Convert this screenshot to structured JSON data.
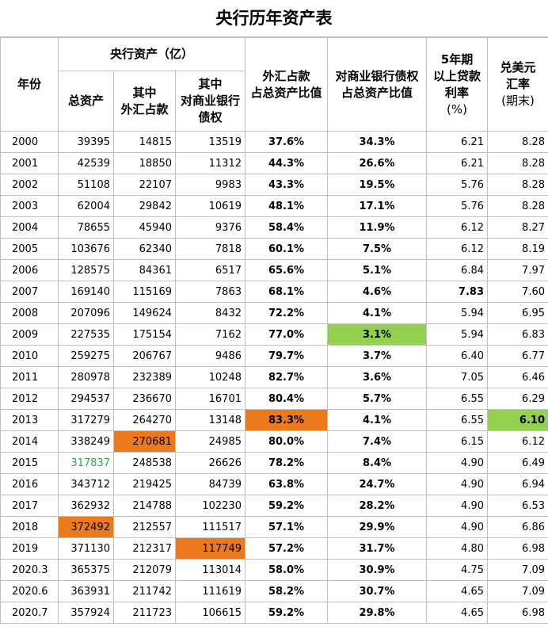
{
  "title": "央行历年资产表",
  "headers": {
    "year": "年份",
    "assets_group": "央行资产（亿）",
    "total": "总资产",
    "fx_l1": "其中",
    "fx_l2": "外汇占款",
    "bank_l1": "其中",
    "bank_l2": "对商业银行",
    "bank_l3": "债权",
    "fx_ratio_l1": "外汇占款",
    "fx_ratio_l2": "占总资产比值",
    "bank_ratio_l1": "对商业银行债权",
    "bank_ratio_l2": "占总资产比值",
    "rate_l1": "5年期",
    "rate_l2": "以上贷款",
    "rate_l3": "利率",
    "rate_l4": "(%)",
    "fx_rate_l1": "兑美元",
    "fx_rate_l2": "汇率",
    "fx_rate_l3": "(期末)"
  },
  "rows": [
    {
      "year": "2000",
      "total": "39395",
      "fx": "14815",
      "bank": "13519",
      "fx_ratio": "37.6%",
      "bank_ratio": "34.3%",
      "rate": "6.21",
      "usd": "8.28"
    },
    {
      "year": "2001",
      "total": "42539",
      "fx": "18850",
      "bank": "11312",
      "fx_ratio": "44.3%",
      "bank_ratio": "26.6%",
      "rate": "6.21",
      "usd": "8.28"
    },
    {
      "year": "2002",
      "total": "51108",
      "fx": "22107",
      "bank": "9983",
      "fx_ratio": "43.3%",
      "bank_ratio": "19.5%",
      "rate": "5.76",
      "usd": "8.28"
    },
    {
      "year": "2003",
      "total": "62004",
      "fx": "29842",
      "bank": "10619",
      "fx_ratio": "48.1%",
      "bank_ratio": "17.1%",
      "rate": "5.76",
      "usd": "8.28"
    },
    {
      "year": "2004",
      "total": "78655",
      "fx": "45940",
      "bank": "9376",
      "fx_ratio": "58.4%",
      "bank_ratio": "11.9%",
      "rate": "6.12",
      "usd": "8.27"
    },
    {
      "year": "2005",
      "total": "103676",
      "fx": "62340",
      "bank": "7818",
      "fx_ratio": "60.1%",
      "bank_ratio": "7.5%",
      "rate": "6.12",
      "usd": "8.19"
    },
    {
      "year": "2006",
      "total": "128575",
      "fx": "84361",
      "bank": "6517",
      "fx_ratio": "65.6%",
      "bank_ratio": "5.1%",
      "rate": "6.84",
      "usd": "7.97"
    },
    {
      "year": "2007",
      "total": "169140",
      "fx": "115169",
      "bank": "7863",
      "fx_ratio": "68.1%",
      "bank_ratio": "4.6%",
      "rate": "7.83",
      "usd": "7.60"
    },
    {
      "year": "2008",
      "total": "207096",
      "fx": "149624",
      "bank": "8432",
      "fx_ratio": "72.2%",
      "bank_ratio": "4.1%",
      "rate": "5.94",
      "usd": "6.95"
    },
    {
      "year": "2009",
      "total": "227535",
      "fx": "175154",
      "bank": "7162",
      "fx_ratio": "77.0%",
      "bank_ratio": "3.1%",
      "rate": "5.94",
      "usd": "6.83"
    },
    {
      "year": "2010",
      "total": "259275",
      "fx": "206767",
      "bank": "9486",
      "fx_ratio": "79.7%",
      "bank_ratio": "3.7%",
      "rate": "6.40",
      "usd": "6.77"
    },
    {
      "year": "2011",
      "total": "280978",
      "fx": "232389",
      "bank": "10248",
      "fx_ratio": "82.7%",
      "bank_ratio": "3.6%",
      "rate": "7.05",
      "usd": "6.46"
    },
    {
      "year": "2012",
      "total": "294537",
      "fx": "236670",
      "bank": "16701",
      "fx_ratio": "80.4%",
      "bank_ratio": "5.7%",
      "rate": "6.55",
      "usd": "6.29"
    },
    {
      "year": "2013",
      "total": "317279",
      "fx": "264270",
      "bank": "13148",
      "fx_ratio": "83.3%",
      "bank_ratio": "4.1%",
      "rate": "6.55",
      "usd": "6.10"
    },
    {
      "year": "2014",
      "total": "338249",
      "fx": "270681",
      "bank": "24985",
      "fx_ratio": "80.0%",
      "bank_ratio": "7.4%",
      "rate": "6.15",
      "usd": "6.12"
    },
    {
      "year": "2015",
      "total": "317837",
      "fx": "248538",
      "bank": "26626",
      "fx_ratio": "78.2%",
      "bank_ratio": "8.4%",
      "rate": "4.90",
      "usd": "6.49"
    },
    {
      "year": "2016",
      "total": "343712",
      "fx": "219425",
      "bank": "84739",
      "fx_ratio": "63.8%",
      "bank_ratio": "24.7%",
      "rate": "4.90",
      "usd": "6.94"
    },
    {
      "year": "2017",
      "total": "362932",
      "fx": "214788",
      "bank": "102230",
      "fx_ratio": "59.2%",
      "bank_ratio": "28.2%",
      "rate": "4.90",
      "usd": "6.53"
    },
    {
      "year": "2018",
      "total": "372492",
      "fx": "212557",
      "bank": "111517",
      "fx_ratio": "57.1%",
      "bank_ratio": "29.9%",
      "rate": "4.90",
      "usd": "6.86"
    },
    {
      "year": "2019",
      "total": "371130",
      "fx": "212317",
      "bank": "117749",
      "fx_ratio": "57.2%",
      "bank_ratio": "31.7%",
      "rate": "4.80",
      "usd": "6.98"
    },
    {
      "year": "2020.3",
      "total": "365375",
      "fx": "212079",
      "bank": "113014",
      "fx_ratio": "58.0%",
      "bank_ratio": "30.9%",
      "rate": "4.75",
      "usd": "7.09"
    },
    {
      "year": "2020.6",
      "total": "363931",
      "fx": "211742",
      "bank": "111619",
      "fx_ratio": "58.2%",
      "bank_ratio": "30.7%",
      "rate": "4.65",
      "usd": "7.09"
    },
    {
      "year": "2020.7",
      "total": "357924",
      "fx": "211723",
      "bank": "106615",
      "fx_ratio": "59.2%",
      "bank_ratio": "29.8%",
      "rate": "4.65",
      "usd": "6.98"
    }
  ],
  "highlights": {
    "orange_color": "#ec7a1c",
    "green_color": "#92d050",
    "green_text_color": "#2ea84a"
  }
}
